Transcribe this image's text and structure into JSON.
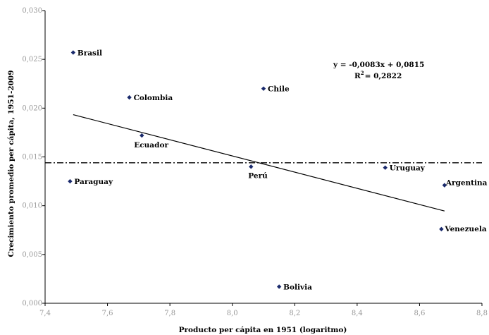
{
  "chart_data": {
    "type": "scatter",
    "title": "",
    "xlabel": "Producto per cápita en 1951 (logaritmo)",
    "ylabel": "Crecimiento promedio per cápita, 1951-2009",
    "xlim": [
      7.4,
      8.8
    ],
    "ylim": [
      0.0,
      0.03
    ],
    "x_ticks": [
      7.4,
      7.6,
      7.8,
      8.0,
      8.2,
      8.4,
      8.6,
      8.8
    ],
    "y_ticks": [
      0.0,
      0.005,
      0.01,
      0.015,
      0.02,
      0.025,
      0.03
    ],
    "x_tick_labels": [
      "7,4",
      "7,6",
      "7,8",
      "8,0",
      "8,2",
      "8,4",
      "8,6",
      "8,8"
    ],
    "y_tick_labels": [
      "0,000",
      "0,005",
      "0,010",
      "0,015",
      "0,020",
      "0,025",
      "0,030"
    ],
    "grid": false,
    "marker_color": "#1a2a6c",
    "points": [
      {
        "label": "Brasil",
        "x": 7.49,
        "y": 0.0257
      },
      {
        "label": "Colombia",
        "x": 7.67,
        "y": 0.0211
      },
      {
        "label": "Chile",
        "x": 8.1,
        "y": 0.022
      },
      {
        "label": "Ecuador",
        "x": 7.71,
        "y": 0.0172
      },
      {
        "label": "Paraguay",
        "x": 7.48,
        "y": 0.0125
      },
      {
        "label": "Perú",
        "x": 8.06,
        "y": 0.014
      },
      {
        "label": "Uruguay",
        "x": 8.49,
        "y": 0.0139
      },
      {
        "label": "Argentina",
        "x": 8.68,
        "y": 0.0121
      },
      {
        "label": "Venezuela",
        "x": 8.67,
        "y": 0.0076
      },
      {
        "label": "Bolivia",
        "x": 8.15,
        "y": 0.0017
      }
    ],
    "trendline": {
      "x_range": [
        7.49,
        8.68
      ],
      "slope": -0.0083,
      "intercept": 0.0815
    },
    "reference_line": {
      "y": 0.0144
    },
    "annotation": {
      "equation": "y = -0,0083x + 0,0815",
      "r2_prefix": "R",
      "r2_sup": "2",
      "r2_value": "= 0,2822"
    }
  }
}
